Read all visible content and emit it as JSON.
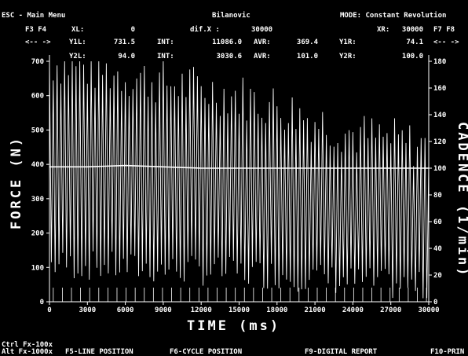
{
  "header": {
    "esc": "ESC - Main Menu",
    "subject": "Bilanovic",
    "mode": "MODE: Constant Revolution"
  },
  "readout": {
    "keys_left_top": "F3 F4",
    "keys_left_bottom": "<-- ->",
    "keys_right_top": "F7 F8",
    "keys_right_bottom": "<-- ->",
    "xl_label": "XL:",
    "xl_value": "0",
    "difx_label": "dif.X :",
    "difx_value": "30000",
    "xr_label": "XR:",
    "xr_value": "30000",
    "y1l_label": "Y1L:",
    "y1l_value": "731.5",
    "int1_label": "INT:",
    "int1_value": "11086.0",
    "avr1_label": "AVR:",
    "avr1_value": "369.4",
    "y1r_label": "Y1R:",
    "y1r_value": "74.1",
    "y2l_label": "Y2L:",
    "y2l_value": "94.0",
    "int2_label": "INT:",
    "int2_value": "3030.6",
    "avr2_label": "AVR:",
    "avr2_value": "101.0",
    "y2r_label": "Y2R:",
    "y2r_value": "100.0"
  },
  "footer": {
    "line1": "Ctrl Fx-100x",
    "line2": "Alt Fx-1000x",
    "f5": "F5-LINE POSITION",
    "f6": "F6-CYCLE POSITION",
    "f9": "F9-DIGITAL REPORT",
    "f10": "F10-PRIN"
  },
  "colors": {
    "background": "#000000",
    "trace": "#ffffff",
    "grid": "#ffffff"
  },
  "chart_data": {
    "type": "line",
    "xlabel": "TIME (ms)",
    "ylabel": "FORCE (N)",
    "y2label": "CADENCE (1/min)",
    "xlim": [
      0,
      30000
    ],
    "ylim": [
      0,
      700
    ],
    "y2lim": [
      0,
      180
    ],
    "x_ticks": [
      0,
      3000,
      6000,
      9000,
      12000,
      15000,
      18000,
      21000,
      24000,
      27000,
      30000
    ],
    "y_ticks": [
      0,
      100,
      200,
      300,
      400,
      500,
      600,
      700
    ],
    "y2_ticks": [
      0,
      20,
      40,
      60,
      80,
      100,
      120,
      140,
      160,
      180
    ],
    "grid": false,
    "series": [
      {
        "name": "FORCE (N)",
        "axis": "left",
        "cycle_period_ms": 300,
        "peak_profile": {
          "x": [
            0,
            3000,
            6000,
            9000,
            12000,
            15000,
            18000,
            21000,
            24000,
            27000,
            30000
          ],
          "y": [
            700,
            680,
            660,
            640,
            620,
            600,
            570,
            530,
            490,
            470,
            450
          ]
        },
        "trough_profile": {
          "x": [
            0,
            3000,
            6000,
            9000,
            12000,
            15000,
            18000,
            21000,
            24000,
            27000,
            30000
          ],
          "y": [
            110,
            105,
            100,
            95,
            90,
            85,
            80,
            70,
            60,
            50,
            40
          ]
        }
      },
      {
        "name": "CADENCE (1/min)",
        "axis": "right",
        "x": [
          0,
          3000,
          6000,
          9000,
          12000,
          15000,
          18000,
          21000,
          24000,
          27000,
          30000
        ],
        "y": [
          101,
          101,
          102,
          101,
          100,
          100,
          100,
          100,
          100,
          100,
          100
        ]
      }
    ]
  }
}
